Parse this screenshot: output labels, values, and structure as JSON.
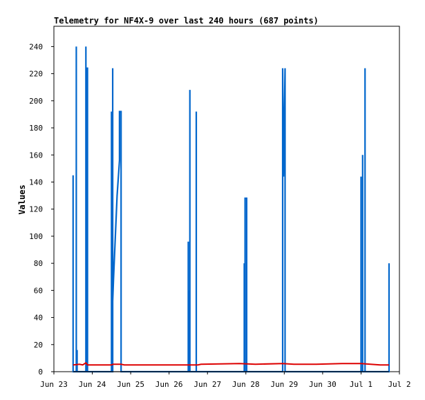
{
  "chart_data": {
    "type": "line",
    "title": "Telemetry for NF4X-9 over last 240 hours (687 points)",
    "xlabel": "",
    "ylabel": "Values",
    "ylim": [
      0,
      255
    ],
    "xlim": [
      "Jun 23",
      "Jul 2"
    ],
    "x_ticks": [
      "Jun 23",
      "Jun 24",
      "Jun 25",
      "Jun 26",
      "Jun 27",
      "Jun 28",
      "Jun 29",
      "Jun 30",
      "Jul 1",
      "Jul 2"
    ],
    "y_ticks": [
      0,
      20,
      40,
      60,
      80,
      100,
      120,
      140,
      160,
      180,
      200,
      220,
      240
    ],
    "grid": false,
    "series": [
      {
        "color": "#0066cc",
        "points": [
          [
            "Jun 23 12:00",
            0
          ],
          [
            "Jun 23 12:00",
            145
          ],
          [
            "Jun 23 12:00",
            0
          ],
          [
            "Jun 23 14:00",
            0
          ],
          [
            "Jun 23 14:00",
            240
          ],
          [
            "Jun 23 14:00",
            0
          ],
          [
            "Jun 23 14:30",
            0
          ],
          [
            "Jun 23 14:30",
            16
          ],
          [
            "Jun 23 14:30",
            0
          ],
          [
            "Jun 23 20:00",
            0
          ],
          [
            "Jun 23 20:00",
            240
          ],
          [
            "Jun 23 20:00",
            0
          ],
          [
            "Jun 23 20:30",
            0
          ],
          [
            "Jun 23 20:30",
            224
          ],
          [
            "Jun 23 21:00",
            224
          ],
          [
            "Jun 23 21:00",
            0
          ],
          [
            "Jun 24 12:00",
            0
          ],
          [
            "Jun 24 12:00",
            192
          ],
          [
            "Jun 24 12:00",
            0
          ],
          [
            "Jun 24 12:45",
            0
          ],
          [
            "Jun 24 12:45",
            224
          ],
          [
            "Jun 24 12:45",
            52
          ],
          [
            "Jun 24 13:15",
            68
          ],
          [
            "Jun 24 15:30",
            130
          ],
          [
            "Jun 24 17:00",
            156
          ],
          [
            "Jun 24 17:00",
            192
          ],
          [
            "Jun 24 18:00",
            192
          ],
          [
            "Jun 24 18:00",
            88
          ],
          [
            "Jun 24 18:00",
            0
          ],
          [
            "Jun 26 12:00",
            0
          ],
          [
            "Jun 26 12:00",
            96
          ],
          [
            "Jun 26 12:00",
            0
          ],
          [
            "Jun 26 12:30",
            0
          ],
          [
            "Jun 26 12:30",
            60
          ],
          [
            "Jun 26 12:30",
            0
          ],
          [
            "Jun 26 13:00",
            0
          ],
          [
            "Jun 26 13:00",
            208
          ],
          [
            "Jun 26 13:00",
            0
          ],
          [
            "Jun 26 17:00",
            0
          ],
          [
            "Jun 26 17:00",
            192
          ],
          [
            "Jun 26 17:00",
            0
          ],
          [
            "Jun 27 23:00",
            0
          ],
          [
            "Jun 27 23:00",
            80
          ],
          [
            "Jun 27 23:00",
            0
          ],
          [
            "Jun 27 23:30",
            0
          ],
          [
            "Jun 27 23:30",
            128
          ],
          [
            "Jun 28 00:30",
            128
          ],
          [
            "Jun 28 00:30",
            16
          ],
          [
            "Jun 28 00:30",
            0
          ],
          [
            "Jun 28 23:00",
            0
          ],
          [
            "Jun 28 23:00",
            224
          ],
          [
            "Jun 28 23:30",
            144
          ],
          [
            "Jun 29 00:30",
            224
          ],
          [
            "Jun 29 00:30",
            0
          ],
          [
            "Jul 1 00:00",
            0
          ],
          [
            "Jul 1 00:00",
            144
          ],
          [
            "Jul 1 00:00",
            0
          ],
          [
            "Jul 1 01:00",
            0
          ],
          [
            "Jul 1 01:00",
            160
          ],
          [
            "Jul 1 01:00",
            0
          ],
          [
            "Jul 1 02:30",
            0
          ],
          [
            "Jul 1 02:30",
            224
          ],
          [
            "Jul 1 02:30",
            56
          ],
          [
            "Jul 1 02:30",
            0
          ],
          [
            "Jul 1 17:30",
            0
          ],
          [
            "Jul 1 17:30",
            80
          ],
          [
            "Jul 1 17:30",
            0
          ]
        ]
      },
      {
        "color": "#dd0000",
        "points": [
          [
            "Jun 23 12:00",
            5
          ],
          [
            "Jun 23 16:00",
            5.5
          ],
          [
            "Jun 23 18:00",
            5
          ],
          [
            "Jun 23 20:00",
            6.5
          ],
          [
            "Jun 23 21:00",
            5
          ],
          [
            "Jun 24 12:00",
            5
          ],
          [
            "Jun 24 13:00",
            5.5
          ],
          [
            "Jun 24 18:00",
            5.5
          ],
          [
            "Jun 24 20:00",
            5
          ],
          [
            "Jun 26 12:00",
            5
          ],
          [
            "Jun 26 18:00",
            5
          ],
          [
            "Jun 26 20:00",
            5.5
          ],
          [
            "Jun 27 20:00",
            6
          ],
          [
            "Jun 28 06:00",
            5.5
          ],
          [
            "Jun 28 23:00",
            6
          ],
          [
            "Jun 29 06:00",
            5.5
          ],
          [
            "Jun 29 12:00",
            5.5
          ],
          [
            "Jun 29 20:00",
            5.5
          ],
          [
            "Jun 30 12:00",
            6
          ],
          [
            "Jul 1 00:00",
            6
          ],
          [
            "Jul 1 06:00",
            5.5
          ],
          [
            "Jul 1 12:00",
            5
          ],
          [
            "Jul 1 17:30",
            5
          ]
        ]
      },
      {
        "color": "#000000",
        "points": [
          [
            "Jun 23 12:00",
            0
          ],
          [
            "Jul 1 17:30",
            0
          ]
        ]
      }
    ]
  }
}
